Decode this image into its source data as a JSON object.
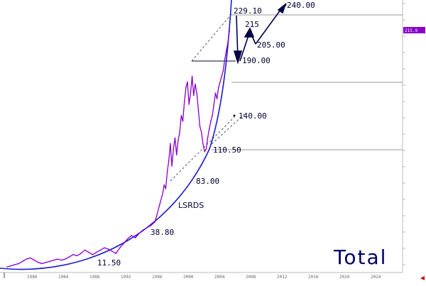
{
  "chart_data": {
    "type": "line",
    "watermark": "Total",
    "curve_label": "LSRDS",
    "footer_text": "",
    "last_price_label": "215.9",
    "x_tick_labels": [
      "1980",
      "1984",
      "1988",
      "1992",
      "1996",
      "2000",
      "2004",
      "2008",
      "2012",
      "2016",
      "2020",
      "2024"
    ],
    "y_tick_labels": [
      "",
      "",
      "",
      "",
      "",
      "",
      "",
      "",
      "",
      "",
      "",
      "",
      "",
      "",
      "",
      "",
      ""
    ],
    "series": [
      {
        "color": "#8800cc",
        "x": [
          1977.0,
          1977.5,
          1978.0,
          1978.5,
          1979.0,
          1979.5,
          1980.0,
          1980.5,
          1981.0,
          1981.5,
          1982.0,
          1982.5,
          1983.0,
          1983.5,
          1984.0,
          1984.5,
          1985.0,
          1985.5,
          1986.0,
          1986.5,
          1987.0,
          1987.5,
          1988.0,
          1988.5,
          1989.0,
          1989.5,
          1990.0,
          1990.5,
          1991.0,
          1991.5,
          1992.0,
          1992.5,
          1993.0,
          1993.5,
          1994.0,
          1994.5,
          1995.0,
          1995.5,
          1996.0,
          1996.3,
          1996.6,
          1997.0,
          1997.2,
          1997.4,
          1997.6,
          1997.8,
          1998.0,
          1998.2,
          1998.4,
          1998.6,
          1998.8,
          1999.0,
          1999.2,
          1999.4,
          1999.6,
          1999.8,
          2000.0,
          2000.2,
          2000.4,
          2000.6,
          2000.8,
          2001.0,
          2001.2,
          2001.4,
          2001.6,
          2001.8,
          2002.0,
          2002.2,
          2002.4,
          2002.6,
          2002.8,
          2003.0,
          2003.2,
          2003.4,
          2003.6,
          2003.8,
          2004.0,
          2004.2,
          2004.4,
          2004.6,
          2004.8,
          2005.0,
          2005.2,
          2005.4,
          2005.6
        ],
        "y": [
          5,
          6,
          7,
          8,
          10,
          12,
          13,
          11,
          9,
          8,
          9,
          10,
          11,
          12,
          11,
          12,
          14,
          16,
          15,
          17,
          20,
          18,
          16,
          18,
          20,
          22,
          21,
          19,
          17,
          22,
          26,
          30,
          33,
          31,
          35,
          38,
          40,
          42,
          45,
          52,
          60,
          70,
          78,
          75,
          90,
          100,
          115,
          95,
          110,
          120,
          105,
          118,
          125,
          140,
          135,
          152,
          165,
          170,
          150,
          160,
          175,
          158,
          168,
          160,
          145,
          130,
          125,
          115,
          108,
          110,
          120,
          128,
          135,
          140,
          150,
          160,
          155,
          165,
          170,
          175,
          180,
          190,
          198,
          205,
          215.9
        ]
      }
    ],
    "annotations": [
      "11.50",
      "38.80",
      "83.00",
      "110.50",
      "140.00",
      "190.00",
      "215",
      "205.00",
      "229.10",
      "240.00"
    ]
  }
}
